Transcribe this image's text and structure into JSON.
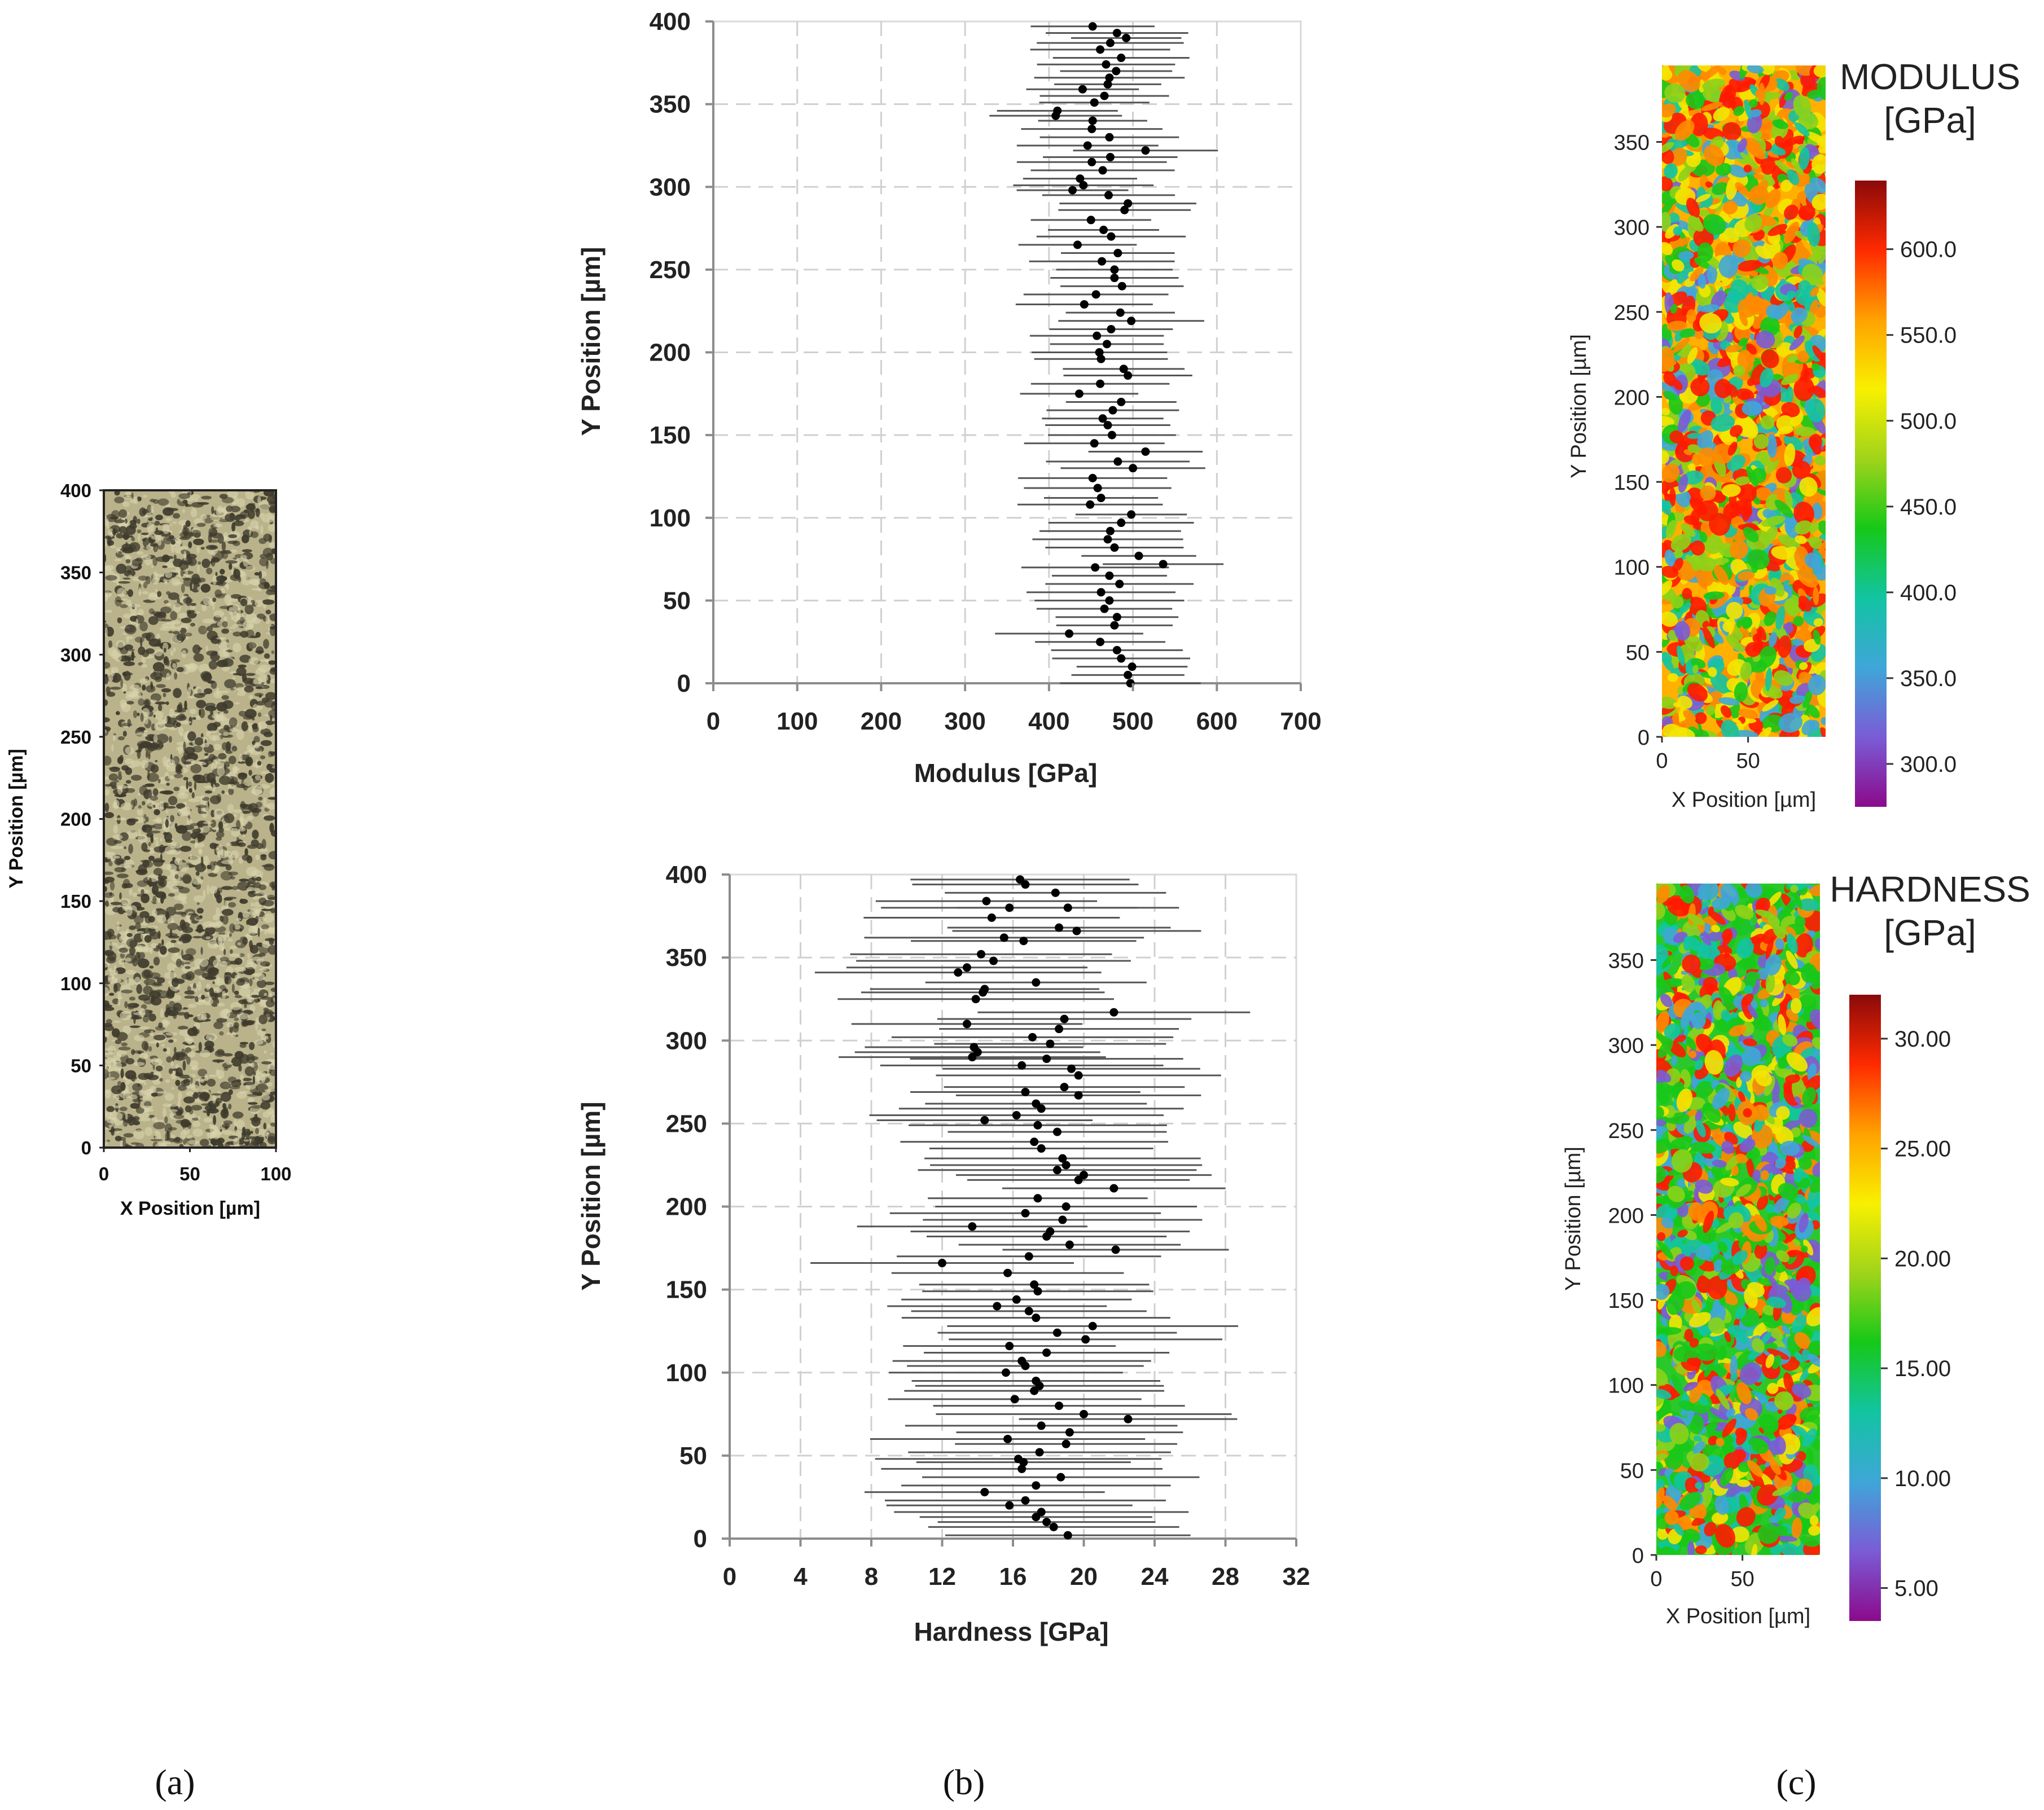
{
  "panel_labels": {
    "a": "(a)",
    "b": "(b)",
    "c": "(c)"
  },
  "micrograph": {
    "xlabel": "X Position [µm]",
    "ylabel": "Y Position [µm]",
    "xticks": [
      "0",
      "50",
      "100"
    ],
    "yticks": [
      "0",
      "50",
      "100",
      "150",
      "200",
      "250",
      "300",
      "350",
      "400"
    ],
    "colors": {
      "base": "#b9b28a",
      "dark": "#3e3a2c"
    }
  },
  "chart_data": [
    {
      "id": "modulus-profile",
      "type": "scatter",
      "title": "",
      "xlabel": "Modulus [GPa]",
      "ylabel": "Y Position [µm]",
      "xlim": [
        0,
        700
      ],
      "ylim": [
        0,
        400
      ],
      "xticks": [
        "0",
        "100",
        "200",
        "300",
        "400",
        "500",
        "600",
        "700"
      ],
      "yticks": [
        "0",
        "50",
        "100",
        "150",
        "200",
        "250",
        "300",
        "350",
        "400"
      ],
      "grid": true,
      "error_halfwidth": 75,
      "points": [
        [
          497,
          0
        ],
        [
          494,
          5
        ],
        [
          499,
          10
        ],
        [
          486,
          15
        ],
        [
          481,
          20
        ],
        [
          461,
          25
        ],
        [
          424,
          30
        ],
        [
          478,
          35
        ],
        [
          481,
          40
        ],
        [
          466,
          45
        ],
        [
          472,
          50
        ],
        [
          462,
          55
        ],
        [
          484,
          60
        ],
        [
          472,
          65
        ],
        [
          455,
          70
        ],
        [
          536,
          72
        ],
        [
          507,
          77
        ],
        [
          478,
          82
        ],
        [
          470,
          87
        ],
        [
          473,
          92
        ],
        [
          486,
          97
        ],
        [
          498,
          102
        ],
        [
          449,
          108
        ],
        [
          462,
          112
        ],
        [
          458,
          118
        ],
        [
          452,
          124
        ],
        [
          500,
          130
        ],
        [
          482,
          134
        ],
        [
          515,
          140
        ],
        [
          454,
          145
        ],
        [
          475,
          150
        ],
        [
          470,
          156
        ],
        [
          464,
          160
        ],
        [
          476,
          165
        ],
        [
          486,
          170
        ],
        [
          436,
          175
        ],
        [
          461,
          181
        ],
        [
          494,
          186
        ],
        [
          489,
          190
        ],
        [
          462,
          196
        ],
        [
          460,
          200
        ],
        [
          469,
          205
        ],
        [
          457,
          210
        ],
        [
          474,
          214
        ],
        [
          498,
          219
        ],
        [
          485,
          224
        ],
        [
          442,
          229
        ],
        [
          456,
          235
        ],
        [
          487,
          240
        ],
        [
          478,
          245
        ],
        [
          478,
          250
        ],
        [
          463,
          255
        ],
        [
          482,
          260
        ],
        [
          434,
          265
        ],
        [
          474,
          270
        ],
        [
          465,
          274
        ],
        [
          450,
          280
        ],
        [
          490,
          286
        ],
        [
          494,
          290
        ],
        [
          471,
          295
        ],
        [
          428,
          298
        ],
        [
          441,
          301
        ],
        [
          437,
          305
        ],
        [
          464,
          310
        ],
        [
          451,
          315
        ],
        [
          473,
          318
        ],
        [
          515,
          322
        ],
        [
          446,
          325
        ],
        [
          472,
          330
        ],
        [
          451,
          335
        ],
        [
          452,
          340
        ],
        [
          408,
          343
        ],
        [
          410,
          346
        ],
        [
          454,
          351
        ],
        [
          466,
          355
        ],
        [
          440,
          359
        ],
        [
          470,
          362
        ],
        [
          472,
          366
        ],
        [
          480,
          370
        ],
        [
          468,
          374
        ],
        [
          486,
          378
        ],
        [
          461,
          383
        ],
        [
          473,
          387
        ],
        [
          492,
          390
        ],
        [
          481,
          393
        ],
        [
          452,
          397
        ]
      ]
    },
    {
      "id": "hardness-profile",
      "type": "scatter",
      "title": "",
      "xlabel": "Hardness [GPa]",
      "ylabel": "Y Position [µm]",
      "xlim": [
        0,
        32
      ],
      "ylim": [
        0,
        400
      ],
      "xticks": [
        "0",
        "4",
        "8",
        "12",
        "16",
        "20",
        "24",
        "28",
        "32"
      ],
      "yticks": [
        "0",
        "50",
        "100",
        "150",
        "200",
        "250",
        "300",
        "350",
        "400"
      ],
      "grid": true,
      "error_halfwidth": 7,
      "points": [
        [
          19.1,
          2
        ],
        [
          18.3,
          7
        ],
        [
          17.9,
          10
        ],
        [
          17.3,
          13
        ],
        [
          17.6,
          16
        ],
        [
          15.8,
          20
        ],
        [
          16.7,
          23
        ],
        [
          14.4,
          28
        ],
        [
          17.3,
          32
        ],
        [
          18.7,
          37
        ],
        [
          16.5,
          42
        ],
        [
          16.6,
          46
        ],
        [
          16.3,
          48
        ],
        [
          17.5,
          52
        ],
        [
          19.0,
          57
        ],
        [
          15.7,
          60
        ],
        [
          19.2,
          64
        ],
        [
          17.6,
          68
        ],
        [
          22.5,
          72
        ],
        [
          20.0,
          75
        ],
        [
          18.6,
          80
        ],
        [
          16.1,
          84
        ],
        [
          17.2,
          89
        ],
        [
          17.5,
          92
        ],
        [
          17.3,
          95
        ],
        [
          15.6,
          100
        ],
        [
          16.7,
          104
        ],
        [
          16.5,
          107
        ],
        [
          17.9,
          112
        ],
        [
          15.8,
          116
        ],
        [
          20.1,
          120
        ],
        [
          18.5,
          124
        ],
        [
          20.5,
          128
        ],
        [
          17.3,
          133
        ],
        [
          16.9,
          137
        ],
        [
          15.1,
          140
        ],
        [
          16.2,
          144
        ],
        [
          17.4,
          149
        ],
        [
          17.2,
          153
        ],
        [
          15.7,
          160
        ],
        [
          12.0,
          166
        ],
        [
          16.9,
          170
        ],
        [
          21.8,
          174
        ],
        [
          19.2,
          177
        ],
        [
          17.9,
          182
        ],
        [
          18.1,
          185
        ],
        [
          13.7,
          188
        ],
        [
          18.8,
          192
        ],
        [
          16.7,
          196
        ],
        [
          19.0,
          200
        ],
        [
          17.4,
          205
        ],
        [
          21.7,
          211
        ],
        [
          19.7,
          216
        ],
        [
          20.0,
          219
        ],
        [
          18.5,
          222
        ],
        [
          19.0,
          225
        ],
        [
          18.8,
          229
        ],
        [
          17.6,
          235
        ],
        [
          17.2,
          239
        ],
        [
          18.5,
          245
        ],
        [
          17.4,
          249
        ],
        [
          14.4,
          252
        ],
        [
          16.2,
          255
        ],
        [
          17.6,
          259
        ],
        [
          17.3,
          262
        ],
        [
          19.7,
          267
        ],
        [
          16.7,
          269
        ],
        [
          18.9,
          272
        ],
        [
          19.7,
          279
        ],
        [
          19.3,
          283
        ],
        [
          16.5,
          285
        ],
        [
          17.9,
          289
        ],
        [
          13.7,
          290
        ],
        [
          14.0,
          293
        ],
        [
          13.8,
          296
        ],
        [
          18.1,
          298
        ],
        [
          17.1,
          302
        ],
        [
          18.6,
          307
        ],
        [
          13.4,
          310
        ],
        [
          18.9,
          313
        ],
        [
          21.7,
          317
        ],
        [
          13.9,
          325
        ],
        [
          14.3,
          329
        ],
        [
          14.4,
          331
        ],
        [
          17.3,
          335
        ],
        [
          12.9,
          341
        ],
        [
          13.4,
          344
        ],
        [
          14.9,
          348
        ],
        [
          14.2,
          352
        ],
        [
          16.6,
          360
        ],
        [
          15.5,
          362
        ],
        [
          19.6,
          366
        ],
        [
          18.6,
          368
        ],
        [
          14.8,
          374
        ],
        [
          19.1,
          380
        ],
        [
          15.8,
          380
        ],
        [
          14.5,
          384
        ],
        [
          18.4,
          389
        ],
        [
          16.7,
          394
        ],
        [
          16.4,
          397
        ]
      ]
    }
  ],
  "heatmaps": [
    {
      "id": "modulus-map",
      "title_line1": "MODULUS",
      "title_line2": "[GPa]",
      "xlabel": "X Position [µm]",
      "ylabel": "Y Position [µm]",
      "xticks": [
        "0",
        "50"
      ],
      "yticks": [
        "0",
        "50",
        "100",
        "150",
        "200",
        "250",
        "300",
        "350"
      ],
      "colorbar_ticks": [
        "300.0",
        "350.0",
        "400.0",
        "450.0",
        "500.0",
        "550.0",
        "600.0"
      ],
      "colorbar_range": [
        275,
        640
      ],
      "seed": 7
    },
    {
      "id": "hardness-map",
      "title_line1": "HARDNESS",
      "title_line2": "[GPa]",
      "xlabel": "X Position [µm]",
      "ylabel": "Y Position [µm]",
      "xticks": [
        "0",
        "50"
      ],
      "yticks": [
        "0",
        "50",
        "100",
        "150",
        "200",
        "250",
        "300",
        "350"
      ],
      "colorbar_ticks": [
        "5.00",
        "10.00",
        "15.00",
        "20.00",
        "25.00",
        "30.00"
      ],
      "colorbar_range": [
        3.5,
        32
      ],
      "seed": 19
    }
  ],
  "colorbar_stops": [
    "#8b0a8b",
    "#7a5cd6",
    "#3fa6d8",
    "#12c4a2",
    "#16c818",
    "#a0d41a",
    "#f8f000",
    "#ffa200",
    "#ff2a00",
    "#8a0a0a"
  ]
}
